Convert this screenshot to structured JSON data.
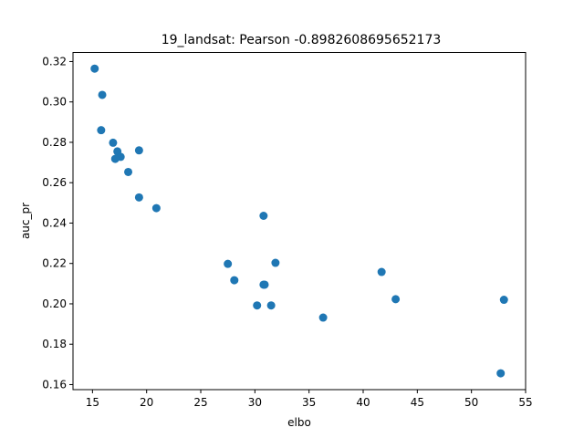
{
  "chart_data": {
    "type": "scatter",
    "title": "19_landsat: Pearson -0.8982608695652173",
    "xlabel": "elbo",
    "ylabel": "auc_pr",
    "xlim": [
      13.2,
      55.0
    ],
    "ylim": [
      0.1575,
      0.3245
    ],
    "xticks": [
      15,
      20,
      25,
      30,
      35,
      40,
      45,
      50,
      55
    ],
    "yticks": [
      0.16,
      0.18,
      0.2,
      0.22,
      0.24,
      0.26,
      0.28,
      0.3,
      0.32
    ],
    "xtick_labels": [
      "15",
      "20",
      "25",
      "30",
      "35",
      "40",
      "45",
      "50",
      "55"
    ],
    "ytick_labels": [
      "0.16",
      "0.18",
      "0.20",
      "0.22",
      "0.24",
      "0.26",
      "0.28",
      "0.30",
      "0.32"
    ],
    "grid": false,
    "marker_color": "#1f77b4",
    "points": [
      {
        "x": 15.2,
        "y": 0.3165
      },
      {
        "x": 15.9,
        "y": 0.3035
      },
      {
        "x": 15.8,
        "y": 0.286
      },
      {
        "x": 16.9,
        "y": 0.2798
      },
      {
        "x": 17.3,
        "y": 0.2755
      },
      {
        "x": 17.6,
        "y": 0.2728
      },
      {
        "x": 17.1,
        "y": 0.2718
      },
      {
        "x": 19.3,
        "y": 0.276
      },
      {
        "x": 18.3,
        "y": 0.2653
      },
      {
        "x": 19.3,
        "y": 0.2527
      },
      {
        "x": 20.9,
        "y": 0.2474
      },
      {
        "x": 30.8,
        "y": 0.2436
      },
      {
        "x": 27.5,
        "y": 0.2198
      },
      {
        "x": 31.9,
        "y": 0.2203
      },
      {
        "x": 28.1,
        "y": 0.2117
      },
      {
        "x": 30.8,
        "y": 0.2095
      },
      {
        "x": 30.9,
        "y": 0.2095
      },
      {
        "x": 30.2,
        "y": 0.1992
      },
      {
        "x": 31.5,
        "y": 0.1992
      },
      {
        "x": 36.3,
        "y": 0.1932
      },
      {
        "x": 41.7,
        "y": 0.2158
      },
      {
        "x": 43.0,
        "y": 0.2023
      },
      {
        "x": 53.0,
        "y": 0.202
      },
      {
        "x": 52.7,
        "y": 0.1656
      }
    ]
  }
}
